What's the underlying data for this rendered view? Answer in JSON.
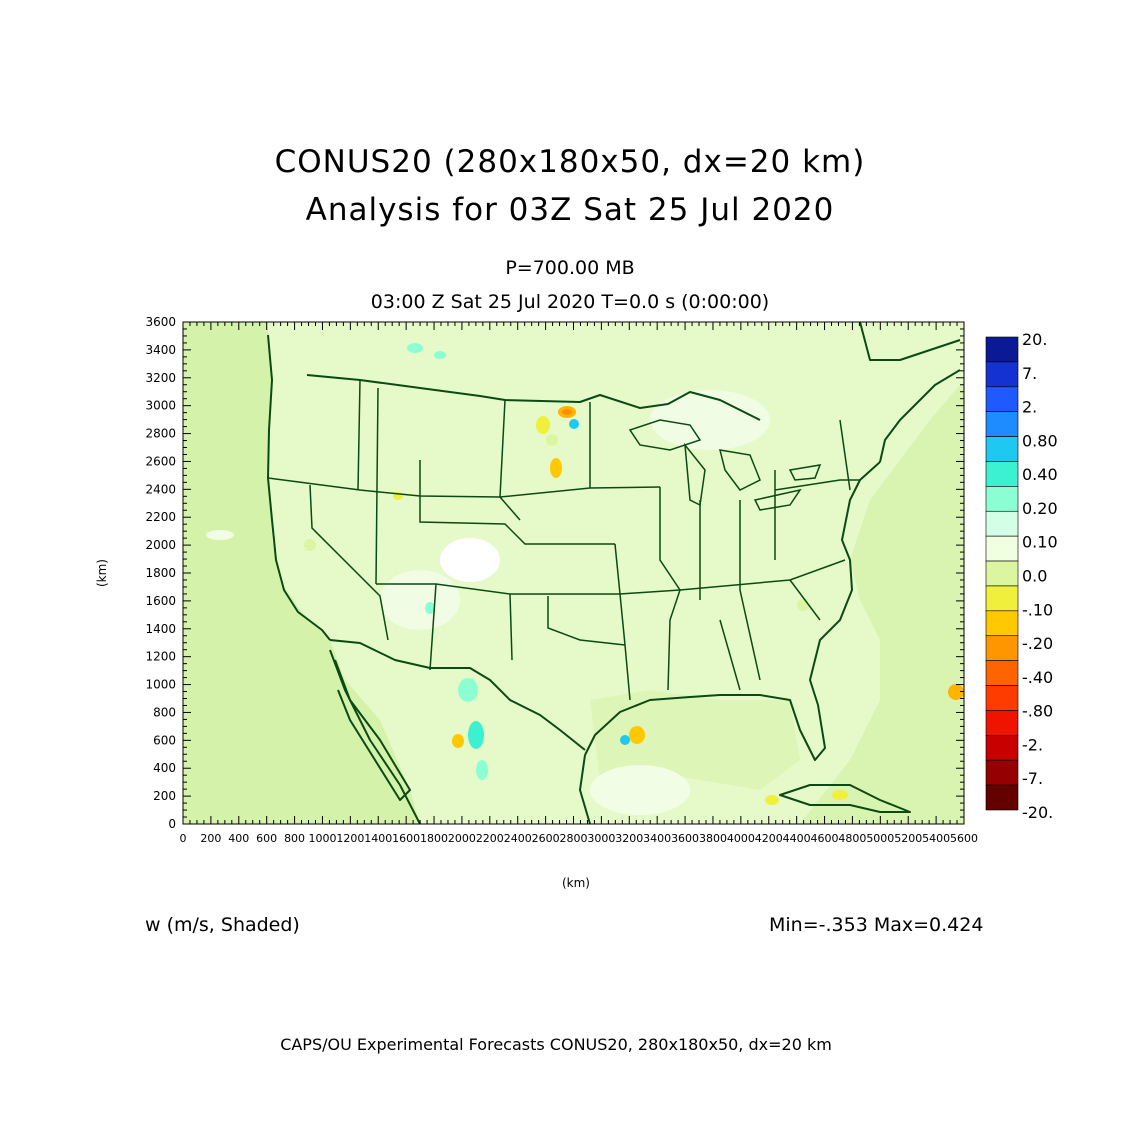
{
  "header": {
    "title_line1": "CONUS20 (280x180x50, dx=20 km)",
    "title_line2": "Analysis for 03Z Sat 25 Jul 2020",
    "level": "P=700.00 MB",
    "valid_time": "03:00 Z Sat 25 Jul 2020    T=0.0 s (0:00:00)"
  },
  "axes": {
    "x_label": "(km)",
    "y_label": "(km)",
    "x_ticks": [
      "0",
      "200",
      "400",
      "600",
      "800",
      "1000",
      "1200",
      "1400",
      "1600",
      "1800",
      "2000",
      "2200",
      "2400",
      "2600",
      "2800",
      "3000",
      "3200",
      "3400",
      "3600",
      "3800",
      "4000",
      "4200",
      "4400",
      "4600",
      "4800",
      "5000",
      "5200",
      "5400",
      "5600"
    ],
    "y_ticks": [
      "0",
      "200",
      "400",
      "600",
      "800",
      "1000",
      "1200",
      "1400",
      "1600",
      "1800",
      "2000",
      "2200",
      "2400",
      "2600",
      "2800",
      "3000",
      "3200",
      "3400",
      "3600"
    ],
    "x_range_km": [
      0,
      5600
    ],
    "y_range_km": [
      0,
      3600
    ]
  },
  "colorbar": {
    "labels": [
      "20.",
      "7.",
      "2.",
      "0.80",
      "0.40",
      "0.20",
      "0.10",
      "0.0",
      "-.10",
      "-.20",
      "-.40",
      "-.80",
      "-2.",
      "-7.",
      "-20."
    ],
    "colors": [
      "#0a1a96",
      "#1432d2",
      "#1e5aff",
      "#1e8cff",
      "#1ec8f0",
      "#3cf0d2",
      "#8cffd2",
      "#d2ffe6",
      "#f0ffe0",
      "#dcf5a0",
      "#f0f03c",
      "#ffc800",
      "#ff9600",
      "#ff6400",
      "#ff3c00",
      "#f01400",
      "#c80000",
      "#960000",
      "#640000"
    ]
  },
  "field_label": "w (m/s, Shaded)",
  "stats": "Min=-.353  Max=0.424",
  "footer": "CAPS/OU Experimental Forecasts  CONUS20, 280x180x50, dx=20 km",
  "colors": {
    "background_field": "#e4f8c4",
    "ocean_field": "#d4f2aa",
    "boundaries": "#0a4a14"
  }
}
